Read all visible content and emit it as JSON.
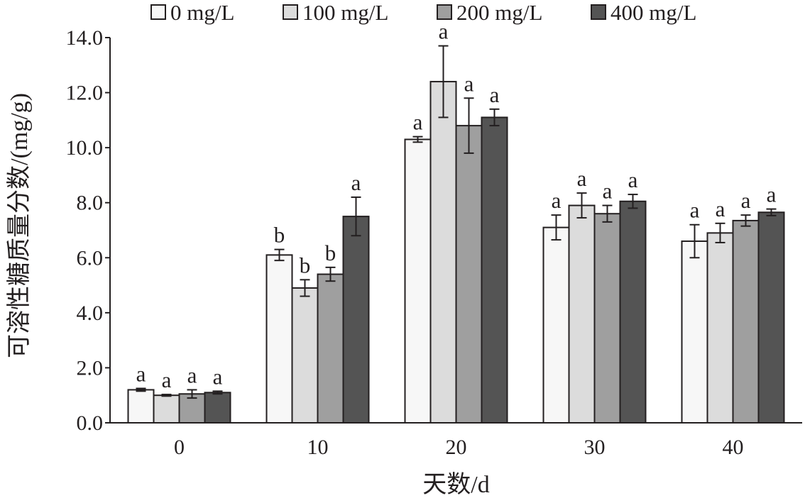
{
  "chart_data": {
    "type": "bar",
    "title": "",
    "xlabel": "天数/d",
    "ylabel": "可溶性糖质量分数/(mg/g)",
    "categories": [
      "0",
      "10",
      "20",
      "30",
      "40"
    ],
    "ylim": [
      0,
      14
    ],
    "yticks": [
      "0.0",
      "2.0",
      "4.0",
      "6.0",
      "8.0",
      "10.0",
      "12.0",
      "14.0"
    ],
    "legend_position": "top",
    "series": [
      {
        "name": "0 mg/L",
        "color": "#f7f7f7",
        "values": [
          1.2,
          6.1,
          10.3,
          7.1,
          6.6
        ],
        "errors": [
          0.05,
          0.2,
          0.1,
          0.45,
          0.6
        ],
        "labels": [
          "a",
          "b",
          "a",
          "a",
          "a"
        ]
      },
      {
        "name": "100 mg/L",
        "color": "#dcdcdc",
        "values": [
          1.0,
          4.9,
          12.4,
          7.9,
          6.9
        ],
        "errors": [
          0.03,
          0.3,
          1.3,
          0.45,
          0.35
        ],
        "labels": [
          "a",
          "b",
          "a",
          "a",
          "a"
        ]
      },
      {
        "name": "200 mg/L",
        "color": "#9f9f9f",
        "values": [
          1.05,
          5.4,
          10.8,
          7.6,
          7.35
        ],
        "errors": [
          0.15,
          0.25,
          1.0,
          0.3,
          0.2
        ],
        "labels": [
          "a",
          "b",
          "a",
          "a",
          "a"
        ]
      },
      {
        "name": "400 mg/L",
        "color": "#545454",
        "values": [
          1.1,
          7.5,
          11.1,
          8.05,
          7.65
        ],
        "errors": [
          0.05,
          0.7,
          0.3,
          0.25,
          0.12
        ],
        "labels": [
          "a",
          "a",
          "a",
          "a",
          "a"
        ]
      }
    ]
  }
}
